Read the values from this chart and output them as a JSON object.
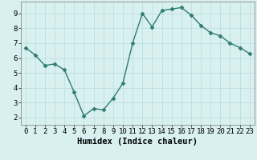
{
  "xlabel": "Humidex (Indice chaleur)",
  "ylabel": "",
  "x": [
    0,
    1,
    2,
    3,
    4,
    5,
    6,
    7,
    8,
    9,
    10,
    11,
    12,
    13,
    14,
    15,
    16,
    17,
    18,
    19,
    20,
    21,
    22,
    23
  ],
  "y": [
    6.7,
    6.2,
    5.5,
    5.6,
    5.2,
    3.7,
    2.1,
    2.6,
    2.5,
    3.3,
    4.3,
    7.0,
    9.0,
    8.1,
    9.2,
    9.3,
    9.4,
    8.9,
    8.2,
    7.7,
    7.5,
    7.0,
    6.7,
    6.3
  ],
  "line_color": "#2e7d6e",
  "marker": "D",
  "marker_size": 2.5,
  "bg_color": "#d8f0f0",
  "grid_color": "#c0dede",
  "axis_bg": "#d8f0f0",
  "ylim": [
    1.5,
    9.8
  ],
  "xlim": [
    -0.5,
    23.5
  ],
  "yticks": [
    2,
    3,
    4,
    5,
    6,
    7,
    8,
    9
  ],
  "xticks": [
    0,
    1,
    2,
    3,
    4,
    5,
    6,
    7,
    8,
    9,
    10,
    11,
    12,
    13,
    14,
    15,
    16,
    17,
    18,
    19,
    20,
    21,
    22,
    23
  ],
  "xlabel_fontsize": 7.5,
  "tick_fontsize": 6.5,
  "line_width": 1.0,
  "spine_color": "#888888"
}
